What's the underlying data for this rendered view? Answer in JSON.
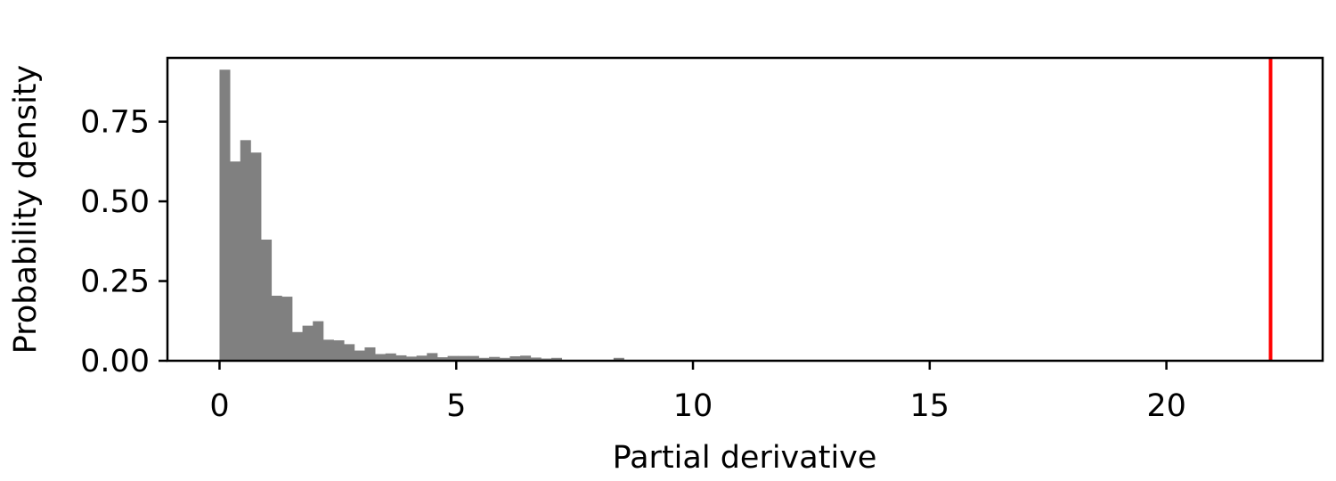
{
  "chart_data": {
    "type": "bar",
    "title": "",
    "xlabel": "Partial derivative",
    "ylabel": "Probability density",
    "xlim": [
      -1.1,
      23.3
    ],
    "ylim": [
      0,
      0.95
    ],
    "grid": false,
    "legend": "none",
    "bin_width": 0.219,
    "x_ticks": [
      0,
      5,
      10,
      15,
      20
    ],
    "x_tick_labels": [
      "0",
      "5",
      "10",
      "15",
      "20"
    ],
    "y_ticks": [
      0,
      0.25,
      0.5,
      0.75
    ],
    "y_tick_labels": [
      "0.00",
      "0.25",
      "0.50",
      "0.75"
    ],
    "bins_start": [
      0.0,
      0.219,
      0.438,
      0.657,
      0.876,
      1.095,
      1.314,
      1.533,
      1.752,
      1.971,
      2.19,
      2.409,
      2.628,
      2.847,
      3.066,
      3.285,
      3.504,
      3.723,
      3.942,
      4.161,
      4.38,
      4.599,
      4.818,
      5.037,
      5.256,
      5.475,
      5.694,
      5.913,
      6.132,
      6.351,
      6.57,
      6.789,
      7.008,
      8.322
    ],
    "values": [
      0.913,
      0.625,
      0.692,
      0.653,
      0.38,
      0.204,
      0.201,
      0.09,
      0.11,
      0.124,
      0.066,
      0.064,
      0.052,
      0.032,
      0.042,
      0.021,
      0.023,
      0.017,
      0.013,
      0.016,
      0.024,
      0.011,
      0.015,
      0.015,
      0.015,
      0.009,
      0.012,
      0.009,
      0.014,
      0.016,
      0.01,
      0.007,
      0.009,
      0.009
    ],
    "bar_color": "#808080",
    "reference_line": {
      "x": 22.2,
      "color": "#ff0000"
    }
  }
}
